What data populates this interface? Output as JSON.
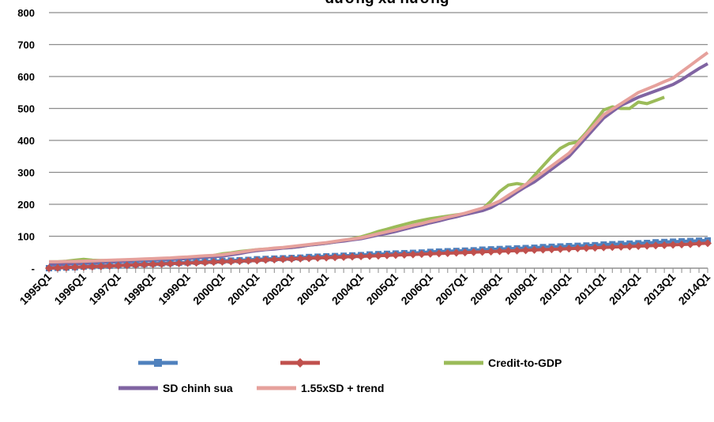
{
  "chart_data": {
    "type": "line",
    "title": "đường xu hướng",
    "categories": [
      "1995Q1",
      null,
      null,
      null,
      "1996Q1",
      null,
      null,
      null,
      "1997Q1",
      null,
      null,
      null,
      "1998Q1",
      null,
      null,
      null,
      "1999Q1",
      null,
      null,
      null,
      "2000Q1",
      null,
      null,
      null,
      "2001Q1",
      null,
      null,
      null,
      "2002Q1",
      null,
      null,
      null,
      "2003Q1",
      null,
      null,
      null,
      "2004Q1",
      null,
      null,
      null,
      "2005Q1",
      null,
      null,
      null,
      "2006Q1",
      null,
      null,
      null,
      "2007Q1",
      null,
      null,
      null,
      "2008Q1",
      null,
      null,
      null,
      "2009Q1",
      null,
      null,
      null,
      "2010Q1",
      null,
      null,
      null,
      "2011Q1",
      null,
      null,
      null,
      "2012Q1",
      null,
      null,
      null,
      "2013Q1",
      null,
      null,
      null,
      "2014Q1"
    ],
    "series": [
      {
        "color": "#4f81bd",
        "marker": "square",
        "values": [
          0,
          1,
          2,
          3,
          5,
          6,
          7,
          8,
          9,
          10,
          12,
          13,
          14,
          15,
          16,
          17,
          18,
          20,
          21,
          22,
          23,
          24,
          25,
          26,
          28,
          29,
          30,
          31,
          32,
          33,
          35,
          36,
          37,
          38,
          39,
          40,
          41,
          43,
          44,
          45,
          46,
          47,
          48,
          49,
          51,
          52,
          53,
          54,
          55,
          56,
          58,
          59,
          60,
          61,
          62,
          63,
          64,
          66,
          67,
          68,
          69,
          70,
          71,
          72,
          74,
          75,
          76,
          77,
          78,
          79,
          81,
          82,
          83,
          84,
          85,
          86,
          87
        ]
      },
      {
        "color": "#c0504d",
        "marker": "diamond",
        "values": [
          0,
          1,
          2,
          3,
          4,
          5,
          6,
          7,
          8,
          9,
          10,
          11,
          12,
          13,
          14,
          15,
          16,
          17,
          18,
          19,
          20,
          21,
          22,
          23,
          24,
          26,
          27,
          28,
          29,
          30,
          31,
          32,
          33,
          34,
          35,
          36,
          37,
          38,
          39,
          40,
          41,
          42,
          43,
          44,
          45,
          46,
          47,
          48,
          49,
          50,
          51,
          52,
          53,
          54,
          55,
          56,
          57,
          58,
          59,
          60,
          61,
          62,
          63,
          64,
          65,
          66,
          67,
          68,
          69,
          70,
          71,
          72,
          73,
          74,
          75,
          77,
          78
        ]
      },
      {
        "name": "Credit-to-GDP",
        "color": "#9bbb59",
        "values": [
          20,
          20,
          22,
          25,
          28,
          25,
          24,
          24,
          25,
          26,
          27,
          27,
          28,
          29,
          29,
          30,
          30,
          32,
          35,
          40,
          45,
          48,
          52,
          55,
          58,
          60,
          62,
          63,
          65,
          68,
          72,
          75,
          78,
          82,
          87,
          92,
          98,
          106,
          115,
          122,
          130,
          137,
          144,
          150,
          155,
          159,
          163,
          167,
          170,
          176,
          185,
          210,
          240,
          260,
          265,
          260,
          290,
          320,
          350,
          375,
          390,
          395,
          425,
          460,
          495,
          505,
          500,
          500,
          520,
          515,
          525,
          535,
          null,
          null,
          null,
          null,
          null
        ]
      },
      {
        "name": "SD chinh sua",
        "color": "#8064a2",
        "values": [
          10,
          11,
          12,
          14,
          15,
          16,
          17,
          19,
          20,
          21,
          22,
          24,
          25,
          26,
          27,
          29,
          30,
          32,
          34,
          36,
          38,
          42,
          46,
          51,
          55,
          58,
          60,
          63,
          65,
          68,
          72,
          75,
          78,
          82,
          85,
          89,
          92,
          98,
          104,
          109,
          115,
          122,
          129,
          135,
          142,
          148,
          155,
          161,
          168,
          174,
          180,
          190,
          205,
          220,
          238,
          255,
          270,
          290,
          310,
          330,
          350,
          380,
          410,
          440,
          470,
          490,
          510,
          522,
          535,
          545,
          555,
          565,
          575,
          590,
          608,
          625,
          640
        ]
      },
      {
        "name": "1.55xSD + trend",
        "color": "#e6a19c",
        "values": [
          20,
          20,
          21,
          21,
          22,
          23,
          24,
          25,
          26,
          27,
          28,
          29,
          30,
          31,
          32,
          34,
          35,
          37,
          39,
          40,
          42,
          46,
          50,
          54,
          58,
          60,
          63,
          65,
          68,
          71,
          74,
          77,
          80,
          84,
          88,
          91,
          95,
          101,
          108,
          114,
          120,
          127,
          134,
          140,
          147,
          153,
          160,
          166,
          172,
          180,
          188,
          198,
          210,
          228,
          245,
          262,
          280,
          300,
          320,
          340,
          360,
          390,
          420,
          450,
          480,
          498,
          515,
          532,
          550,
          561,
          572,
          584,
          595,
          615,
          635,
          655,
          675
        ]
      }
    ],
    "ylim": [
      0,
      800
    ],
    "yticks": [
      {
        "value": 0,
        "label": "-"
      },
      100,
      200,
      300,
      400,
      500,
      600,
      700,
      800
    ],
    "grid": true,
    "legend": "bottom"
  }
}
